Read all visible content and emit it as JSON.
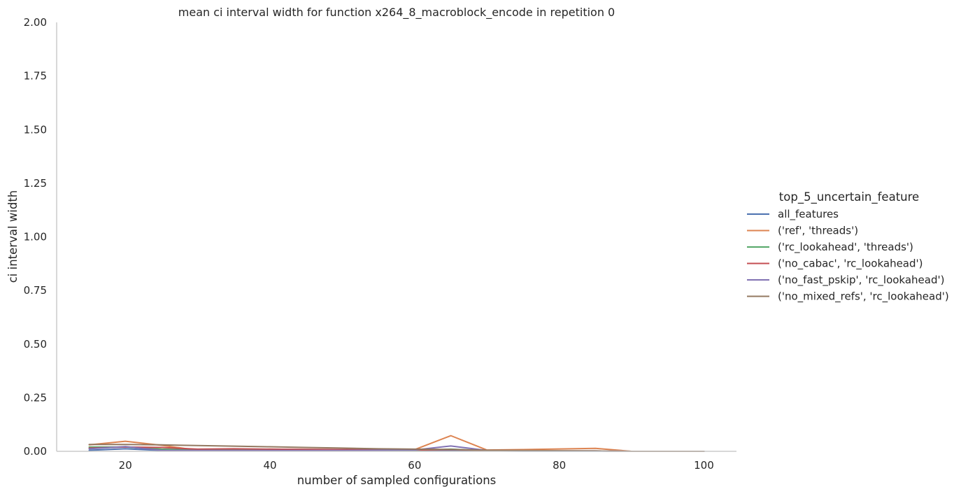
{
  "chart_data": {
    "type": "line",
    "title": "mean ci interval width for function x264_8_macroblock_encode in repetition 0",
    "xlabel": "number of sampled configurations",
    "ylabel": "ci interval width",
    "xlim": [
      10.5,
      104.5
    ],
    "ylim": [
      0,
      2.0
    ],
    "xticks": [
      20,
      40,
      60,
      80,
      100
    ],
    "yticks": [
      0.0,
      0.25,
      0.5,
      0.75,
      1.0,
      1.25,
      1.5,
      1.75,
      2.0
    ],
    "xtick_labels": [
      "20",
      "40",
      "60",
      "80",
      "100"
    ],
    "ytick_labels": [
      "0.00",
      "0.25",
      "0.50",
      "0.75",
      "1.00",
      "1.25",
      "1.50",
      "1.75",
      "2.00"
    ],
    "grid": false,
    "legend_title": "top_5_uncertain_feature",
    "legend_position": "right",
    "series": [
      {
        "name": "all_features",
        "color": "#4c72b0",
        "x": [
          15,
          20,
          25,
          30,
          35,
          40,
          45,
          50,
          55,
          60,
          65,
          70,
          75,
          80,
          85,
          90,
          95,
          100
        ],
        "y": [
          0.005,
          0.012,
          0.004,
          0.003,
          0.003,
          0.002,
          0.002,
          0.002,
          0.002,
          0.002,
          0.004,
          0.002,
          0.001,
          0.001,
          0.001,
          0.0,
          0.0,
          0.0
        ]
      },
      {
        "name": "('ref', 'threads')",
        "color": "#dd8452",
        "x": [
          15,
          20,
          25,
          30,
          35,
          40,
          45,
          50,
          55,
          60,
          65,
          70,
          75,
          80,
          85,
          90,
          95,
          100
        ],
        "y": [
          0.03,
          0.047,
          0.028,
          0.005,
          0.008,
          0.01,
          0.009,
          0.008,
          0.007,
          0.008,
          0.073,
          0.006,
          0.008,
          0.011,
          0.014,
          0.0,
          0.0,
          0.0
        ]
      },
      {
        "name": "('rc_lookahead', 'threads')",
        "color": "#55a868",
        "x": [
          15,
          20,
          25,
          30,
          35,
          40,
          45,
          50,
          55,
          60,
          65,
          70,
          75,
          80,
          85,
          90,
          95,
          100
        ],
        "y": [
          0.02,
          0.02,
          0.01,
          0.006,
          0.006,
          0.005,
          0.005,
          0.004,
          0.004,
          0.004,
          0.01,
          0.003,
          0.003,
          0.002,
          0.002,
          0.0,
          0.0,
          0.0
        ]
      },
      {
        "name": "('no_cabac', 'rc_lookahead')",
        "color": "#c44e52",
        "x": [
          15,
          20,
          25,
          30,
          35,
          40,
          45,
          50,
          55,
          60,
          65,
          70,
          75,
          80,
          85,
          90,
          95,
          100
        ],
        "y": [
          0.015,
          0.02,
          0.018,
          0.01,
          0.012,
          0.01,
          0.009,
          0.008,
          0.007,
          0.006,
          0.008,
          0.004,
          0.003,
          0.002,
          0.002,
          0.0,
          0.0,
          0.0
        ]
      },
      {
        "name": "('no_fast_pskip', 'rc_lookahead')",
        "color": "#8172b3",
        "x": [
          15,
          20,
          25,
          30,
          35,
          40,
          45,
          50,
          55,
          60,
          65,
          70,
          75,
          80,
          85,
          90,
          95,
          100
        ],
        "y": [
          0.012,
          0.022,
          0.005,
          0.004,
          0.004,
          0.004,
          0.004,
          0.004,
          0.005,
          0.006,
          0.025,
          0.004,
          0.003,
          0.002,
          0.002,
          0.0,
          0.0,
          0.0
        ]
      },
      {
        "name": "('no_mixed_refs', 'rc_lookahead')",
        "color": "#937860",
        "x": [
          15,
          20,
          25,
          30,
          35,
          40,
          45,
          50,
          55,
          60,
          65,
          70,
          75,
          80,
          85,
          90,
          95,
          100
        ],
        "y": [
          0.032,
          0.032,
          0.03,
          0.027,
          0.024,
          0.021,
          0.018,
          0.015,
          0.012,
          0.01,
          0.009,
          0.005,
          0.004,
          0.003,
          0.002,
          0.0,
          0.0,
          0.0
        ]
      }
    ]
  }
}
